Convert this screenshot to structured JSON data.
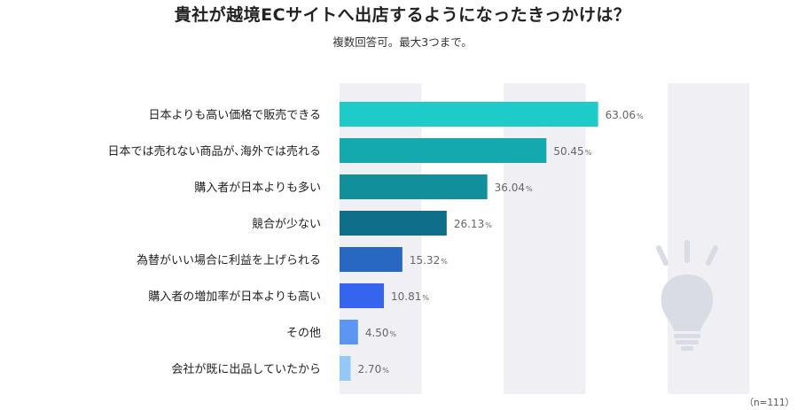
{
  "title": "貴社が越境ECサイトへ出店するようになったきっかけは？",
  "subtitle": "複数回答可。最大3つまで。",
  "sample_note": "（n=111）",
  "chart_data": {
    "type": "bar",
    "orientation": "horizontal",
    "categories": [
      "日本よりも高い価格で販売できる",
      "日本では売れない商品が､海外では売れる",
      "購入者が日本よりも多い",
      "競合が少ない",
      "為替がいい場合に利益を上げられる",
      "購入者の増加率が日本よりも高い",
      "その他",
      "会社が既に出品していたから"
    ],
    "values": [
      63.06,
      50.45,
      36.04,
      26.13,
      15.32,
      10.81,
      4.5,
      2.7
    ],
    "value_labels": [
      "63.06",
      "50.45",
      "36.04",
      "26.13",
      "15.32",
      "10.81",
      "4.50",
      "2.70"
    ],
    "unit": "%",
    "colors": [
      "#1ecbc9",
      "#14a9ae",
      "#11909c",
      "#0f6f8a",
      "#2868c3",
      "#3565ee",
      "#5c96f2",
      "#93c9f7"
    ],
    "xlim": [
      0,
      100
    ],
    "background_band_color": "#f0f0f4",
    "decoration_icon": "lightbulb-icon",
    "icon_color": "#d9dce4"
  }
}
